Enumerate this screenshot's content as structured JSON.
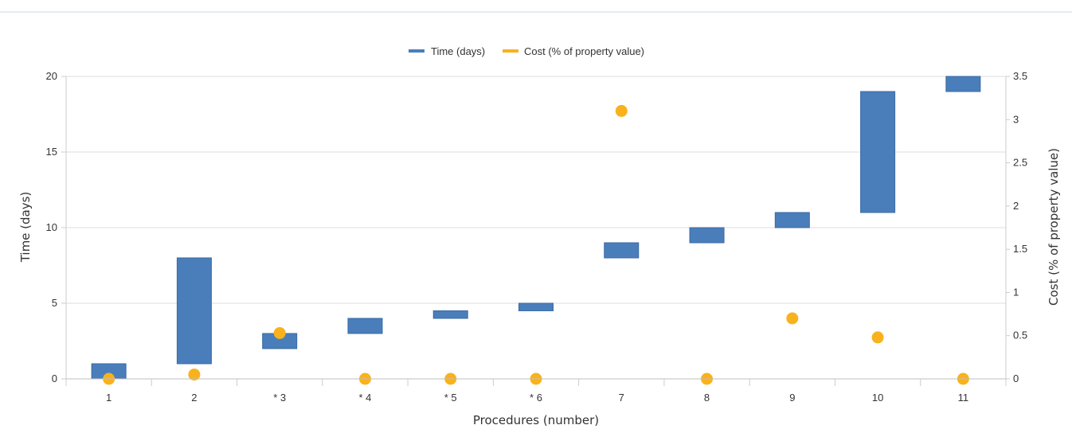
{
  "header": {
    "faded_text": ""
  },
  "chart_data": {
    "type": "bar",
    "subtype": "floating-bar-with-scatter",
    "categories": [
      "1",
      "2",
      "* 3",
      "* 4",
      "* 5",
      "* 6",
      "7",
      "8",
      "9",
      "10",
      "11"
    ],
    "series": [
      {
        "name": "Time (days)",
        "kind": "floating-bar",
        "axis": "left",
        "color": "#4a7ebb",
        "ranges": [
          [
            0,
            1
          ],
          [
            1,
            8
          ],
          [
            2,
            3
          ],
          [
            3,
            4
          ],
          [
            4,
            4.5
          ],
          [
            4.5,
            5
          ],
          [
            8,
            9
          ],
          [
            9,
            10
          ],
          [
            10,
            11
          ],
          [
            11,
            19
          ],
          [
            19,
            20
          ]
        ]
      },
      {
        "name": "Cost (% of property value)",
        "kind": "scatter",
        "axis": "right",
        "color": "#f9b21c",
        "values": [
          0,
          0.05,
          0.53,
          0,
          0,
          0,
          3.1,
          0,
          0.7,
          0.48,
          0
        ]
      }
    ],
    "xlabel": "Procedures (number)",
    "ylabel": "Time (days)",
    "y2label": "Cost (% of property value)",
    "ylim": [
      0,
      20
    ],
    "y2lim": [
      0,
      3.5
    ],
    "yticks": [
      "0",
      "5",
      "10",
      "15",
      "20"
    ],
    "y2ticks": [
      "0",
      "0.5",
      "1",
      "1.5",
      "2",
      "2.5",
      "3",
      "3.5"
    ],
    "legend_position": "top-center",
    "grid": true
  }
}
